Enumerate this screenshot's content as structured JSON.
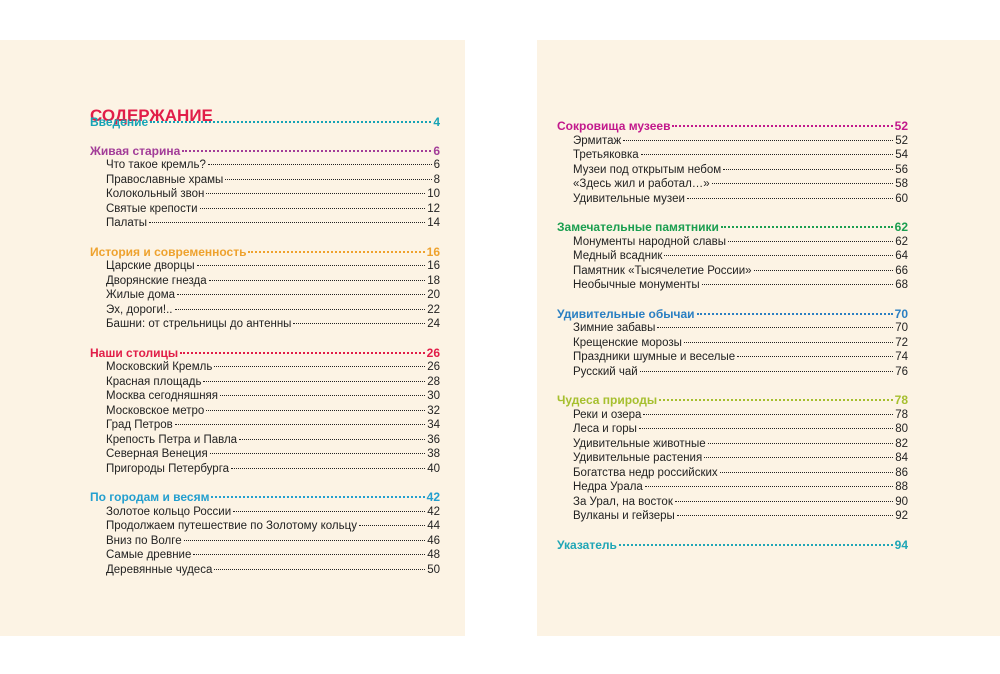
{
  "title": "СОДЕРЖАНИЕ",
  "pages": [
    {
      "sections": [
        {
          "title": "Введение",
          "page": "4",
          "color": "#17a3b5",
          "items": []
        },
        {
          "title": "Живая старина",
          "page": "6",
          "color": "#a23c98",
          "items": [
            {
              "title": "Что такое кремль?",
              "page": "6"
            },
            {
              "title": "Православные храмы",
              "page": "8"
            },
            {
              "title": "Колокольный звон",
              "page": "10"
            },
            {
              "title": "Святые крепости",
              "page": "12"
            },
            {
              "title": "Палаты",
              "page": "14"
            }
          ]
        },
        {
          "title": "История и современность",
          "page": "16",
          "color": "#eea22e",
          "items": [
            {
              "title": "Царские дворцы",
              "page": "16"
            },
            {
              "title": "Дворянские гнезда",
              "page": "18"
            },
            {
              "title": "Жилые дома",
              "page": "20"
            },
            {
              "title": "Эх, дороги!..",
              "page": "22"
            },
            {
              "title": "Башни: от стрельницы до антенны",
              "page": "24"
            }
          ]
        },
        {
          "title": "Наши столицы",
          "page": "26",
          "color": "#e11d48",
          "items": [
            {
              "title": "Московский Кремль",
              "page": "26"
            },
            {
              "title": "Красная площадь",
              "page": "28"
            },
            {
              "title": "Москва сегодняшняя",
              "page": "30"
            },
            {
              "title": "Московское метро",
              "page": "32"
            },
            {
              "title": "Град Петров",
              "page": "34"
            },
            {
              "title": "Крепость Петра и Павла",
              "page": "36"
            },
            {
              "title": "Северная Венеция",
              "page": "38"
            },
            {
              "title": "Пригороды Петербурга",
              "page": "40"
            }
          ]
        },
        {
          "title": "По городам и весям",
          "page": "42",
          "color": "#239fcf",
          "items": [
            {
              "title": "Золотое кольцо России",
              "page": "42"
            },
            {
              "title": "Продолжаем путешествие по Золотому кольцу",
              "page": "44"
            },
            {
              "title": "Вниз по Волге",
              "page": "46"
            },
            {
              "title": "Самые древние",
              "page": "48"
            },
            {
              "title": "Деревянные чудеса",
              "page": "50"
            }
          ]
        }
      ]
    },
    {
      "sections": [
        {
          "title": "Сокровища музеев",
          "page": "52",
          "color": "#c2188c",
          "items": [
            {
              "title": "Эрмитаж",
              "page": "52"
            },
            {
              "title": "Третьяковка",
              "page": "54"
            },
            {
              "title": "Музеи под открытым небом",
              "page": "56"
            },
            {
              "title": "«Здесь жил и работал…»",
              "page": "58"
            },
            {
              "title": "Удивительные музеи",
              "page": "60"
            }
          ]
        },
        {
          "title": "Замечательные памятники",
          "page": "62",
          "color": "#1a9e4f",
          "items": [
            {
              "title": "Монументы народной славы",
              "page": "62"
            },
            {
              "title": "Медный всадник",
              "page": "64"
            },
            {
              "title": "Памятник «Тысячелетие России»",
              "page": "66"
            },
            {
              "title": "Необычные монументы",
              "page": "68"
            }
          ]
        },
        {
          "title": "Удивительные обычаи",
          "page": "70",
          "color": "#2a7fc2",
          "items": [
            {
              "title": "Зимние забавы",
              "page": "70"
            },
            {
              "title": "Крещенские морозы",
              "page": "72"
            },
            {
              "title": "Праздники шумные и веселые",
              "page": "74"
            },
            {
              "title": "Русский чай",
              "page": "76"
            }
          ]
        },
        {
          "title": "Чудеса природы",
          "page": "78",
          "color": "#a6bf2e",
          "items": [
            {
              "title": "Реки и озера",
              "page": "78"
            },
            {
              "title": "Леса и горы",
              "page": "80"
            },
            {
              "title": "Удивительные животные",
              "page": "82"
            },
            {
              "title": "Удивительные растения",
              "page": "84"
            },
            {
              "title": "Богатства недр российских",
              "page": "86"
            },
            {
              "title": "Недра Урала",
              "page": "88"
            },
            {
              "title": "За Урал, на восток",
              "page": "90"
            },
            {
              "title": "Вулканы и гейзеры",
              "page": "92"
            }
          ]
        },
        {
          "title": "Указатель",
          "page": "94",
          "color": "#1fa6b6",
          "items": []
        }
      ]
    }
  ]
}
